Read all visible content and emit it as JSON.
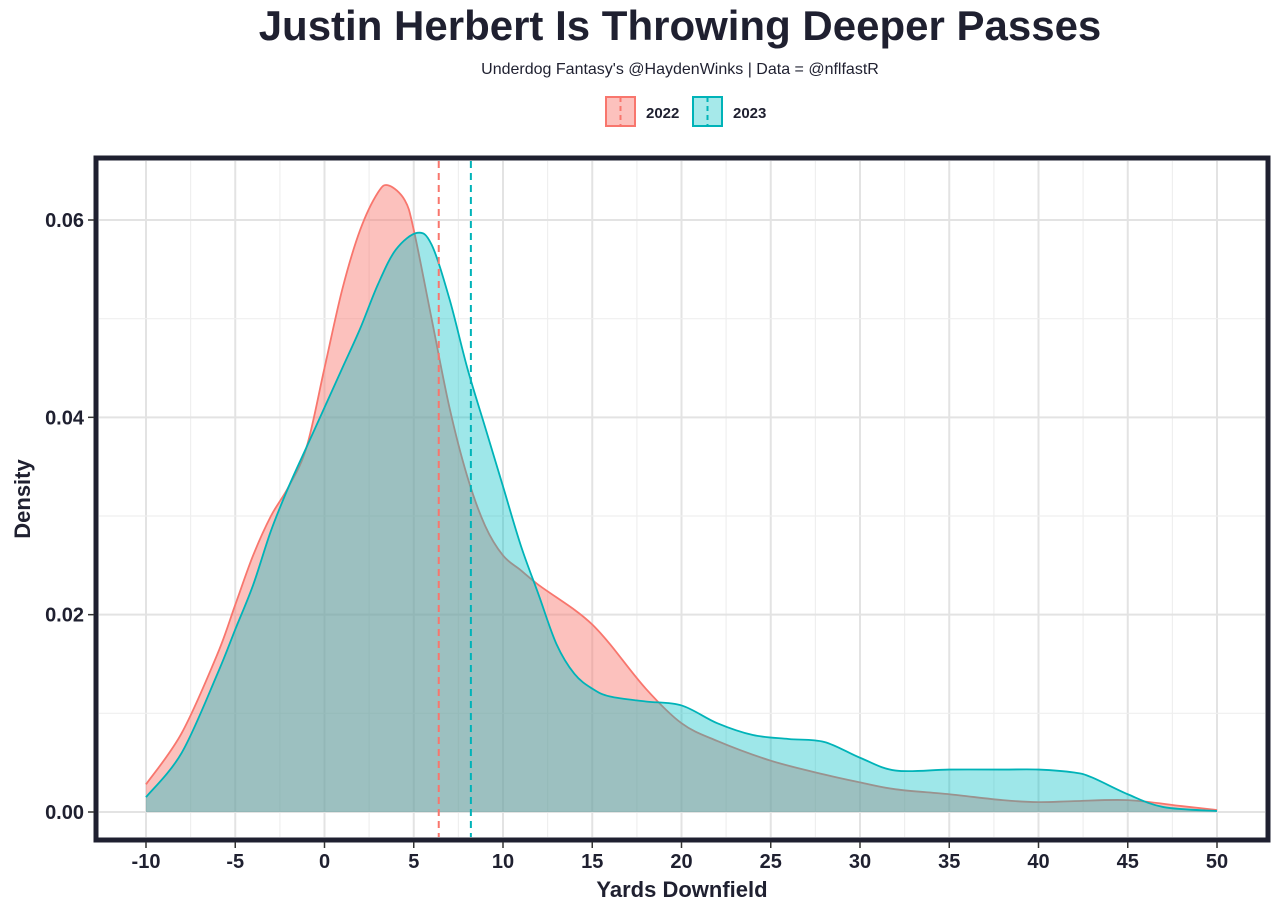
{
  "chart_data": {
    "type": "area",
    "title": "Justin Herbert Is Throwing Deeper Passes",
    "subtitle": "Underdog Fantasy's @HaydenWinks | Data = @nflfastR",
    "xlabel": "Yards Downfield",
    "ylabel": "Density",
    "xlim": [
      -10,
      50
    ],
    "ylim": [
      0,
      0.06
    ],
    "x_ticks": [
      "-10",
      "-5",
      "0",
      "5",
      "10",
      "15",
      "20",
      "25",
      "30",
      "35",
      "40",
      "45",
      "50"
    ],
    "y_ticks": [
      "0.00",
      "0.02",
      "0.04",
      "0.06"
    ],
    "grid": true,
    "legend_position": "top",
    "series": [
      {
        "name": "2022",
        "color": "#F8766D",
        "mean_line": 6.4,
        "x": [
          -10,
          -8,
          -6,
          -5,
          -4,
          -3,
          -2,
          -1,
          0,
          1,
          2,
          3,
          3.6,
          4.5,
          5,
          6,
          7,
          8,
          9,
          10,
          11,
          12,
          14,
          15,
          16,
          18,
          20,
          22,
          25,
          28,
          30,
          32,
          35,
          38,
          40,
          42,
          45,
          48,
          50
        ],
        "y": [
          0.0028,
          0.008,
          0.016,
          0.021,
          0.026,
          0.03,
          0.033,
          0.037,
          0.045,
          0.053,
          0.059,
          0.0628,
          0.0635,
          0.062,
          0.059,
          0.05,
          0.041,
          0.034,
          0.029,
          0.026,
          0.0245,
          0.023,
          0.0205,
          0.019,
          0.017,
          0.0125,
          0.009,
          0.0072,
          0.0052,
          0.0038,
          0.003,
          0.0023,
          0.0018,
          0.0012,
          0.001,
          0.0011,
          0.0012,
          0.0006,
          0.0002
        ]
      },
      {
        "name": "2023",
        "color": "#00BFC4",
        "mean_line": 8.2,
        "x": [
          -10,
          -8,
          -6,
          -5,
          -4,
          -3,
          -2,
          -1,
          0,
          1,
          2,
          3,
          4,
          5.2,
          6,
          7,
          8,
          9,
          10,
          11,
          12,
          13,
          14,
          15,
          16,
          18,
          20,
          22,
          24,
          26,
          28,
          30,
          32,
          35,
          38,
          40,
          42,
          43,
          45,
          47,
          50
        ],
        "y": [
          0.0015,
          0.006,
          0.014,
          0.0185,
          0.023,
          0.0285,
          0.033,
          0.037,
          0.041,
          0.045,
          0.049,
          0.0535,
          0.057,
          0.0587,
          0.0575,
          0.052,
          0.045,
          0.039,
          0.033,
          0.027,
          0.022,
          0.017,
          0.014,
          0.0125,
          0.0117,
          0.0112,
          0.0108,
          0.009,
          0.0078,
          0.0074,
          0.0071,
          0.0055,
          0.0042,
          0.0043,
          0.0043,
          0.0043,
          0.004,
          0.0035,
          0.0018,
          0.0005,
          0.0001
        ]
      }
    ]
  }
}
